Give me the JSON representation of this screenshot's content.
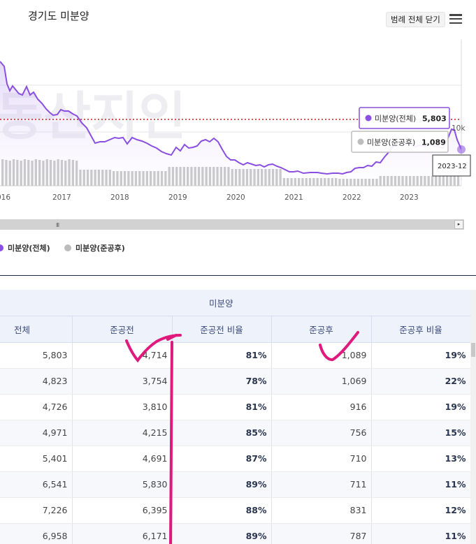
{
  "header": {
    "title": "경기도 미분양",
    "legend_toggle_label": "범례 전체 닫기"
  },
  "chart_data": {
    "type": "line",
    "series": [
      {
        "name": "미분양(전체)",
        "color": "#8a4fe0"
      },
      {
        "name": "미분양(준공후)",
        "color": "#bdbdbd"
      }
    ],
    "x_tick_labels": [
      "016",
      "2017",
      "2018",
      "2019",
      "2020",
      "2021",
      "2022",
      "2023"
    ],
    "y_tick_label": "10k",
    "reference_line_color": "#cc1d1d",
    "watermark": "동산지인",
    "tooltip": {
      "total_label": "미분양(전체)",
      "total_value": "5,803",
      "completed_label": "미분양(준공후)",
      "completed_value": "1,089",
      "date": "2023-12"
    }
  },
  "scrollbar": {
    "grip": "III",
    "arrow": "▸"
  },
  "table": {
    "group_header": "미분양",
    "columns": [
      "전체",
      "준공전",
      "준공전 비율",
      "준공후",
      "준공후 비율"
    ],
    "rows": [
      [
        "5,803",
        "4,714",
        "81%",
        "1,089",
        "19%"
      ],
      [
        "4,823",
        "3,754",
        "78%",
        "1,069",
        "22%"
      ],
      [
        "4,726",
        "3,810",
        "81%",
        "916",
        "19%"
      ],
      [
        "4,971",
        "4,215",
        "85%",
        "756",
        "15%"
      ],
      [
        "5,401",
        "4,691",
        "87%",
        "710",
        "13%"
      ],
      [
        "6,541",
        "5,830",
        "89%",
        "711",
        "11%"
      ],
      [
        "7,226",
        "6,395",
        "88%",
        "831",
        "12%"
      ],
      [
        "6,958",
        "6,171",
        "89%",
        "787",
        "11%"
      ]
    ]
  }
}
